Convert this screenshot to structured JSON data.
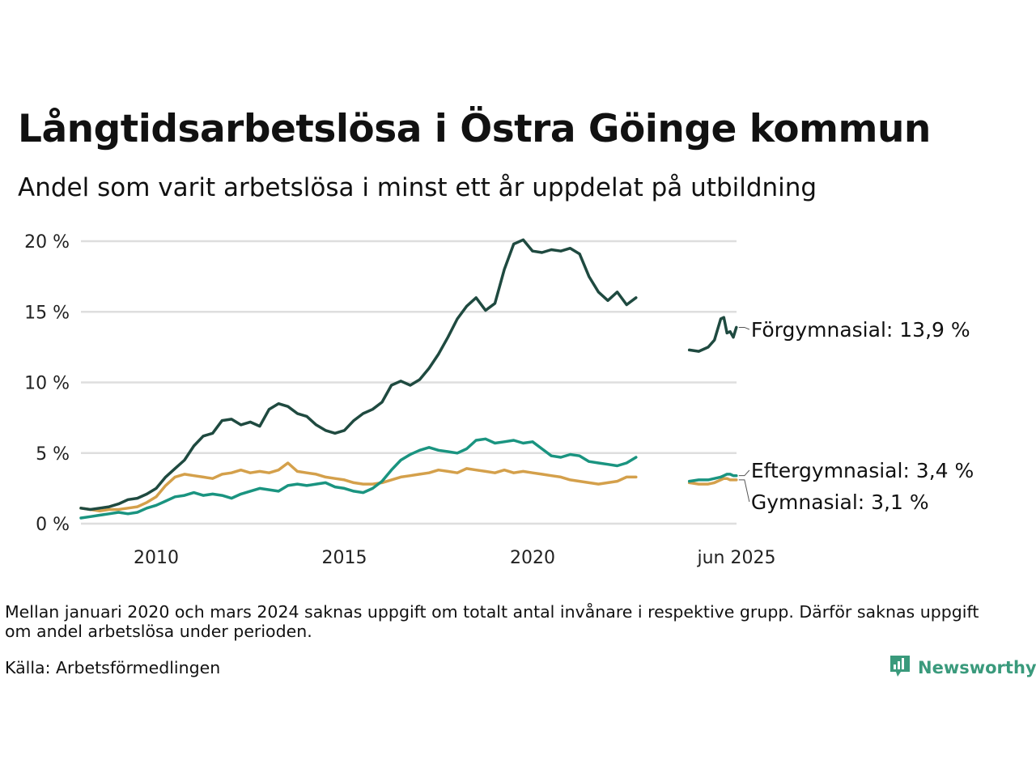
{
  "title": "Långtidsarbetslösa i Östra Göinge kommun",
  "subtitle": "Andel som varit arbetslösa i minst ett år uppdelat på utbildning",
  "note": "Mellan januari 2020 och mars 2024 saknas uppgift om totalt antal invånare i respektive grupp. Därför saknas uppgift om andel arbetslösa under perioden.",
  "source": "Källa: Arbetsförmedlingen",
  "brand": {
    "name": "Newsworthy",
    "icon": "newsworthy-chart-icon"
  },
  "colors": {
    "Förgymnasial": "#1f4a40",
    "Eftergymnasial": "#1a9480",
    "Gymnasial": "#d4a04b",
    "grid": "#dedede"
  },
  "chart_data": {
    "type": "line",
    "title": "Långtidsarbetslösa i Östra Göinge kommun",
    "subtitle": "Andel som varit arbetslösa i minst ett år uppdelat på utbildning",
    "xlabel": "",
    "ylabel": "",
    "x_ticks": [
      "2010",
      "2015",
      "2020",
      "jun 2025"
    ],
    "y_ticks": [
      "0 %",
      "5 %",
      "10 %",
      "15 %",
      "20 %"
    ],
    "ylim": [
      0,
      20
    ],
    "grid": true,
    "legend": "none",
    "series": [
      {
        "name": "Förgymnasial",
        "end_label": "Förgymnasial: 13,9 %",
        "segments": [
          [
            [
              "2008-01",
              1.1
            ],
            [
              "2008-04",
              1.0
            ],
            [
              "2008-07",
              1.1
            ],
            [
              "2008-10",
              1.2
            ],
            [
              "2009-01",
              1.4
            ],
            [
              "2009-04",
              1.7
            ],
            [
              "2009-07",
              1.8
            ],
            [
              "2009-10",
              2.1
            ],
            [
              "2010-01",
              2.5
            ],
            [
              "2010-04",
              3.3
            ],
            [
              "2010-07",
              3.9
            ],
            [
              "2010-10",
              4.5
            ],
            [
              "2011-01",
              5.5
            ],
            [
              "2011-04",
              6.2
            ],
            [
              "2011-07",
              6.4
            ],
            [
              "2011-10",
              7.3
            ],
            [
              "2012-01",
              7.4
            ],
            [
              "2012-04",
              7.0
            ],
            [
              "2012-07",
              7.2
            ],
            [
              "2012-10",
              6.9
            ],
            [
              "2013-01",
              8.1
            ],
            [
              "2013-04",
              8.5
            ],
            [
              "2013-07",
              8.3
            ],
            [
              "2013-10",
              7.8
            ],
            [
              "2014-01",
              7.6
            ],
            [
              "2014-04",
              7.0
            ],
            [
              "2014-07",
              6.6
            ],
            [
              "2014-10",
              6.4
            ],
            [
              "2015-01",
              6.6
            ],
            [
              "2015-04",
              7.3
            ],
            [
              "2015-07",
              7.8
            ],
            [
              "2015-10",
              8.1
            ],
            [
              "2016-01",
              8.6
            ],
            [
              "2016-04",
              9.8
            ],
            [
              "2016-07",
              10.1
            ],
            [
              "2016-10",
              9.8
            ],
            [
              "2017-01",
              10.2
            ],
            [
              "2017-04",
              11.0
            ],
            [
              "2017-07",
              12.0
            ],
            [
              "2017-10",
              13.2
            ],
            [
              "2018-01",
              14.5
            ],
            [
              "2018-04",
              15.4
            ],
            [
              "2018-07",
              16.0
            ],
            [
              "2018-10",
              15.1
            ],
            [
              "2019-01",
              15.6
            ],
            [
              "2019-04",
              18.0
            ],
            [
              "2019-07",
              19.8
            ],
            [
              "2019-10",
              20.1
            ],
            [
              "2020-01",
              19.3
            ],
            [
              "2020-04",
              19.2
            ],
            [
              "2020-07",
              19.4
            ],
            [
              "2020-10",
              19.3
            ],
            [
              "2021-01",
              19.5
            ],
            [
              "2021-04",
              19.1
            ],
            [
              "2021-07",
              17.5
            ],
            [
              "2021-10",
              16.4
            ],
            [
              "2022-01",
              15.8
            ],
            [
              "2022-04",
              16.4
            ],
            [
              "2022-07",
              15.5
            ],
            [
              "2022-10",
              16.0
            ]
          ],
          [
            [
              "2024-03",
              12.3
            ],
            [
              "2024-06",
              12.2
            ],
            [
              "2024-09",
              12.5
            ],
            [
              "2024-11",
              13.0
            ],
            [
              "2025-01",
              14.5
            ],
            [
              "2025-02",
              14.6
            ],
            [
              "2025-03",
              13.5
            ],
            [
              "2025-04",
              13.6
            ],
            [
              "2025-05",
              13.2
            ],
            [
              "2025-06",
              13.9
            ]
          ]
        ]
      },
      {
        "name": "Eftergymnasial",
        "end_label": "Eftergymnasial:  3,4 %",
        "segments": [
          [
            [
              "2008-01",
              0.4
            ],
            [
              "2008-04",
              0.5
            ],
            [
              "2008-07",
              0.6
            ],
            [
              "2008-10",
              0.7
            ],
            [
              "2009-01",
              0.8
            ],
            [
              "2009-04",
              0.7
            ],
            [
              "2009-07",
              0.8
            ],
            [
              "2009-10",
              1.1
            ],
            [
              "2010-01",
              1.3
            ],
            [
              "2010-04",
              1.6
            ],
            [
              "2010-07",
              1.9
            ],
            [
              "2010-10",
              2.0
            ],
            [
              "2011-01",
              2.2
            ],
            [
              "2011-04",
              2.0
            ],
            [
              "2011-07",
              2.1
            ],
            [
              "2011-10",
              2.0
            ],
            [
              "2012-01",
              1.8
            ],
            [
              "2012-04",
              2.1
            ],
            [
              "2012-07",
              2.3
            ],
            [
              "2012-10",
              2.5
            ],
            [
              "2013-01",
              2.4
            ],
            [
              "2013-04",
              2.3
            ],
            [
              "2013-07",
              2.7
            ],
            [
              "2013-10",
              2.8
            ],
            [
              "2014-01",
              2.7
            ],
            [
              "2014-04",
              2.8
            ],
            [
              "2014-07",
              2.9
            ],
            [
              "2014-10",
              2.6
            ],
            [
              "2015-01",
              2.5
            ],
            [
              "2015-04",
              2.3
            ],
            [
              "2015-07",
              2.2
            ],
            [
              "2015-10",
              2.5
            ],
            [
              "2016-01",
              3.0
            ],
            [
              "2016-04",
              3.8
            ],
            [
              "2016-07",
              4.5
            ],
            [
              "2016-10",
              4.9
            ],
            [
              "2017-01",
              5.2
            ],
            [
              "2017-04",
              5.4
            ],
            [
              "2017-07",
              5.2
            ],
            [
              "2017-10",
              5.1
            ],
            [
              "2018-01",
              5.0
            ],
            [
              "2018-04",
              5.3
            ],
            [
              "2018-07",
              5.9
            ],
            [
              "2018-10",
              6.0
            ],
            [
              "2019-01",
              5.7
            ],
            [
              "2019-04",
              5.8
            ],
            [
              "2019-07",
              5.9
            ],
            [
              "2019-10",
              5.7
            ],
            [
              "2020-01",
              5.8
            ],
            [
              "2020-04",
              5.3
            ],
            [
              "2020-07",
              4.8
            ],
            [
              "2020-10",
              4.7
            ],
            [
              "2021-01",
              4.9
            ],
            [
              "2021-04",
              4.8
            ],
            [
              "2021-07",
              4.4
            ],
            [
              "2021-10",
              4.3
            ],
            [
              "2022-01",
              4.2
            ],
            [
              "2022-04",
              4.1
            ],
            [
              "2022-07",
              4.3
            ],
            [
              "2022-10",
              4.7
            ]
          ],
          [
            [
              "2024-03",
              3.0
            ],
            [
              "2024-06",
              3.1
            ],
            [
              "2024-09",
              3.1
            ],
            [
              "2024-11",
              3.2
            ],
            [
              "2025-01",
              3.3
            ],
            [
              "2025-02",
              3.4
            ],
            [
              "2025-03",
              3.5
            ],
            [
              "2025-04",
              3.5
            ],
            [
              "2025-05",
              3.4
            ],
            [
              "2025-06",
              3.4
            ]
          ]
        ]
      },
      {
        "name": "Gymnasial",
        "end_label": "Gymnasial:  3,1 %",
        "segments": [
          [
            [
              "2008-01",
              1.1
            ],
            [
              "2008-04",
              1.0
            ],
            [
              "2008-07",
              0.9
            ],
            [
              "2008-10",
              1.0
            ],
            [
              "2009-01",
              1.0
            ],
            [
              "2009-04",
              1.1
            ],
            [
              "2009-07",
              1.2
            ],
            [
              "2009-10",
              1.5
            ],
            [
              "2010-01",
              1.9
            ],
            [
              "2010-04",
              2.7
            ],
            [
              "2010-07",
              3.3
            ],
            [
              "2010-10",
              3.5
            ],
            [
              "2011-01",
              3.4
            ],
            [
              "2011-04",
              3.3
            ],
            [
              "2011-07",
              3.2
            ],
            [
              "2011-10",
              3.5
            ],
            [
              "2012-01",
              3.6
            ],
            [
              "2012-04",
              3.8
            ],
            [
              "2012-07",
              3.6
            ],
            [
              "2012-10",
              3.7
            ],
            [
              "2013-01",
              3.6
            ],
            [
              "2013-04",
              3.8
            ],
            [
              "2013-07",
              4.3
            ],
            [
              "2013-10",
              3.7
            ],
            [
              "2014-01",
              3.6
            ],
            [
              "2014-04",
              3.5
            ],
            [
              "2014-07",
              3.3
            ],
            [
              "2014-10",
              3.2
            ],
            [
              "2015-01",
              3.1
            ],
            [
              "2015-04",
              2.9
            ],
            [
              "2015-07",
              2.8
            ],
            [
              "2015-10",
              2.8
            ],
            [
              "2016-01",
              2.9
            ],
            [
              "2016-04",
              3.1
            ],
            [
              "2016-07",
              3.3
            ],
            [
              "2016-10",
              3.4
            ],
            [
              "2017-01",
              3.5
            ],
            [
              "2017-04",
              3.6
            ],
            [
              "2017-07",
              3.8
            ],
            [
              "2017-10",
              3.7
            ],
            [
              "2018-01",
              3.6
            ],
            [
              "2018-04",
              3.9
            ],
            [
              "2018-07",
              3.8
            ],
            [
              "2018-10",
              3.7
            ],
            [
              "2019-01",
              3.6
            ],
            [
              "2019-04",
              3.8
            ],
            [
              "2019-07",
              3.6
            ],
            [
              "2019-10",
              3.7
            ],
            [
              "2020-01",
              3.6
            ],
            [
              "2020-04",
              3.5
            ],
            [
              "2020-07",
              3.4
            ],
            [
              "2020-10",
              3.3
            ],
            [
              "2021-01",
              3.1
            ],
            [
              "2021-04",
              3.0
            ],
            [
              "2021-07",
              2.9
            ],
            [
              "2021-10",
              2.8
            ],
            [
              "2022-01",
              2.9
            ],
            [
              "2022-04",
              3.0
            ],
            [
              "2022-07",
              3.3
            ],
            [
              "2022-10",
              3.3
            ]
          ],
          [
            [
              "2024-03",
              2.9
            ],
            [
              "2024-06",
              2.8
            ],
            [
              "2024-09",
              2.8
            ],
            [
              "2024-11",
              2.9
            ],
            [
              "2025-01",
              3.1
            ],
            [
              "2025-02",
              3.2
            ],
            [
              "2025-03",
              3.2
            ],
            [
              "2025-04",
              3.1
            ],
            [
              "2025-05",
              3.1
            ],
            [
              "2025-06",
              3.1
            ]
          ]
        ]
      }
    ]
  }
}
